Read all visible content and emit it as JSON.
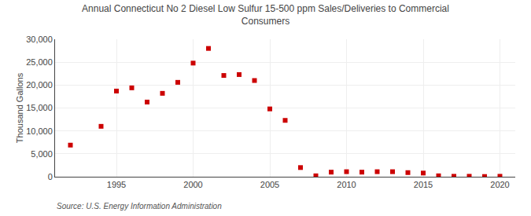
{
  "chart_data": {
    "type": "scatter",
    "title": "Annual Connecticut No 2 Diesel Low Sulfur 15-500 ppm Sales/Deliveries to Commercial\nConsumers",
    "ylabel": "Thousand Gallons",
    "annotations": [
      "Source: U.S. Energy Information Administration"
    ],
    "x": [
      1992,
      1994,
      1995,
      1996,
      1997,
      1998,
      1999,
      2000,
      2001,
      2002,
      2003,
      2004,
      2005,
      2006,
      2007,
      2008,
      2009,
      2010,
      2011,
      2012,
      2013,
      2014,
      2015,
      2016,
      2017,
      2018,
      2019,
      2020
    ],
    "values": [
      6900,
      11000,
      18700,
      19400,
      16300,
      18200,
      20600,
      24800,
      28000,
      22100,
      22300,
      21000,
      14800,
      12300,
      2000,
      200,
      1000,
      1100,
      1000,
      1100,
      1100,
      900,
      800,
      200,
      100,
      100,
      50,
      100
    ],
    "color": "#cc0000",
    "marker": "square",
    "xlim": [
      1991,
      2021
    ],
    "xticks": [
      1995,
      2000,
      2005,
      2010,
      2015,
      2020
    ],
    "ylim": [
      0,
      30000
    ],
    "yticks": [
      0,
      {
        "value": 5000,
        "label": "5,000"
      },
      {
        "value": 10000,
        "label": "10,000"
      },
      {
        "value": 15000,
        "label": "15,000"
      },
      {
        "value": 20000,
        "label": "20,000"
      },
      {
        "value": 25000,
        "label": "25,000"
      },
      {
        "value": 30000,
        "label": "30,000"
      }
    ],
    "grid": true
  }
}
